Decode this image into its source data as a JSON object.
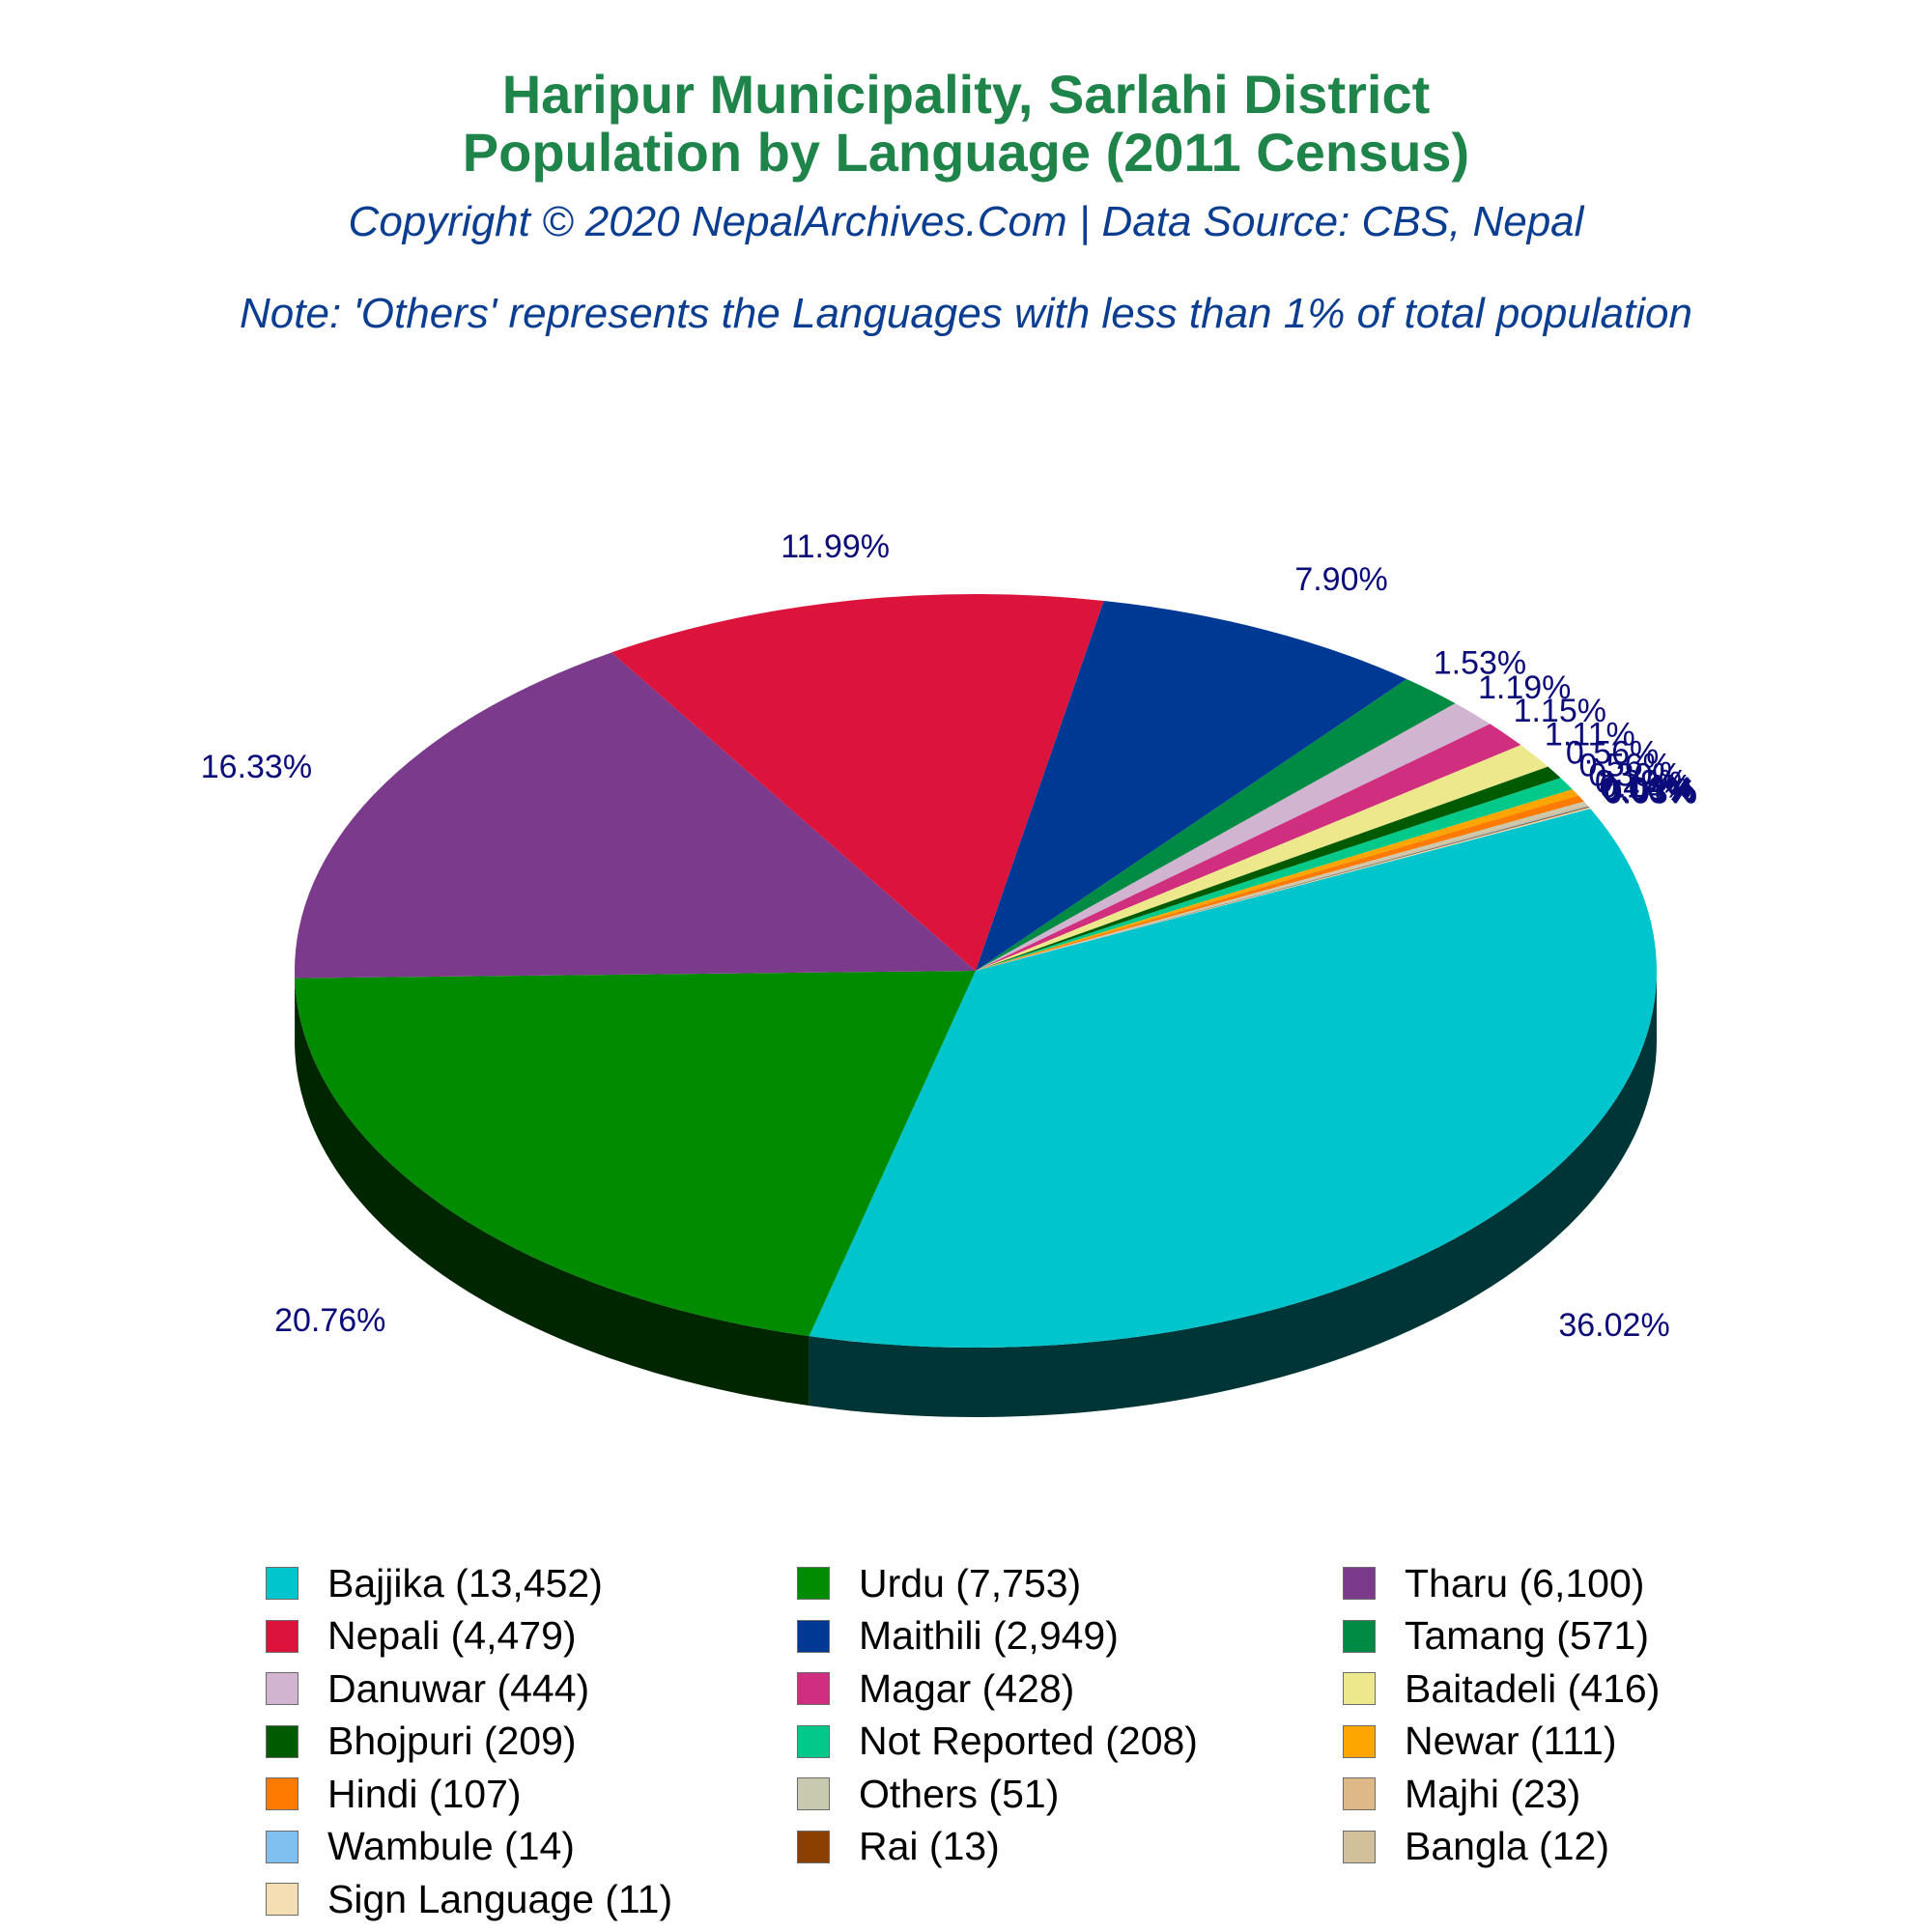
{
  "title_line1": "Haripur Municipality, Sarlahi District",
  "title_line2": "Population by Language (2011 Census)",
  "copyright": "Copyright © 2020 NepalArchives.Com | Data Source: CBS, Nepal",
  "note": "Note: 'Others' represents the Languages with less than 1% of total population",
  "chart_data": {
    "type": "pie",
    "variant": "3d",
    "legend_position": "bottom",
    "slices": [
      {
        "label": "Bajjika",
        "value": 13452,
        "percent_label": "36.02%",
        "color": "#00c5cd"
      },
      {
        "label": "Urdu",
        "value": 7753,
        "percent_label": "20.76%",
        "color": "#008b00"
      },
      {
        "label": "Tharu",
        "value": 6100,
        "percent_label": "16.33%",
        "color": "#7b3a8b"
      },
      {
        "label": "Nepali",
        "value": 4479,
        "percent_label": "11.99%",
        "color": "#dc143c"
      },
      {
        "label": "Maithili",
        "value": 2949,
        "percent_label": "7.90%",
        "color": "#003994"
      },
      {
        "label": "Tamang",
        "value": 571,
        "percent_label": "1.53%",
        "color": "#008b45"
      },
      {
        "label": "Danuwar",
        "value": 444,
        "percent_label": "1.19%",
        "color": "#d0b4d0"
      },
      {
        "label": "Magar",
        "value": 428,
        "percent_label": "1.15%",
        "color": "#d02f7f"
      },
      {
        "label": "Baitadeli",
        "value": 416,
        "percent_label": "1.11%",
        "color": "#eee88c"
      },
      {
        "label": "Bhojpuri",
        "value": 209,
        "percent_label": "0.56%",
        "color": "#005a00"
      },
      {
        "label": "Not Reported",
        "value": 208,
        "percent_label": "0.56%",
        "color": "#00c98a"
      },
      {
        "label": "Newar",
        "value": 111,
        "percent_label": "0.30%",
        "color": "#ffa500"
      },
      {
        "label": "Hindi",
        "value": 107,
        "percent_label": "0.29%",
        "color": "#ff7a00"
      },
      {
        "label": "Others",
        "value": 51,
        "percent_label": "0.14%",
        "color": "#c9c9b0"
      },
      {
        "label": "Majhi",
        "value": 23,
        "percent_label": "0.06%",
        "color": "#deb887"
      },
      {
        "label": "Wambule",
        "value": 14,
        "percent_label": "0.04%",
        "color": "#80c0f0"
      },
      {
        "label": "Rai",
        "value": 13,
        "percent_label": "0.03%",
        "color": "#8b4000"
      },
      {
        "label": "Bangla",
        "value": 12,
        "percent_label": "0.03%",
        "color": "#d2c09a"
      },
      {
        "label": "Sign Language",
        "value": 11,
        "percent_label": "0.03%",
        "color": "#f5deb3"
      }
    ]
  },
  "legend": [
    "Bajjika (13,452)",
    "Urdu (7,753)",
    "Tharu (6,100)",
    "Nepali (4,479)",
    "Maithili (2,949)",
    "Tamang (571)",
    "Danuwar (444)",
    "Magar (428)",
    "Baitadeli (416)",
    "Bhojpuri (209)",
    "Not Reported (208)",
    "Newar (111)",
    "Hindi (107)",
    "Others (51)",
    "Majhi (23)",
    "Wambule (14)",
    "Rai (13)",
    "Bangla (12)",
    "Sign Language (11)"
  ]
}
